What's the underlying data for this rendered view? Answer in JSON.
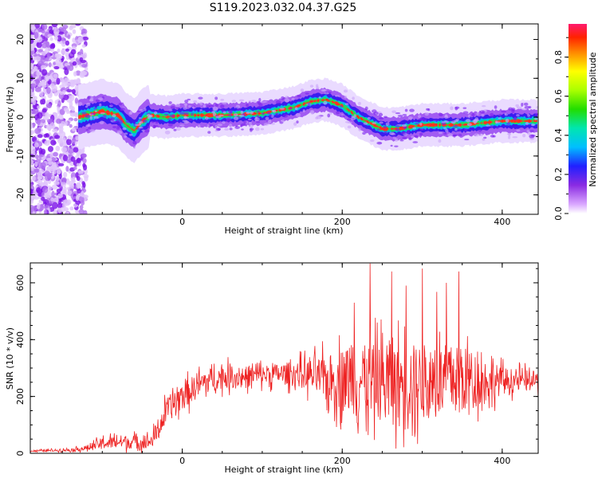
{
  "title": "S119.2023.032.04.37.G25",
  "chart_data": [
    {
      "type": "heatmap",
      "xlabel": "Height of straight line (km)",
      "ylabel": "Frequency (Hz)",
      "xlim": [
        -190,
        445
      ],
      "ylim": [
        -25,
        24
      ],
      "xticks": [
        0,
        200,
        400
      ],
      "yticks": [
        -20,
        -10,
        0,
        10,
        20
      ],
      "colorbar": {
        "label": "Normalized spectral amplitude",
        "range": [
          0,
          0.97
        ],
        "ticks": [
          0.0,
          0.2,
          0.4,
          0.6,
          0.8
        ]
      },
      "ridge": {
        "x": [
          -130,
          -100,
          -80,
          -70,
          -60,
          -50,
          -40,
          -20,
          0,
          50,
          100,
          140,
          160,
          180,
          200,
          220,
          250,
          270,
          300,
          350,
          400,
          445
        ],
        "y": [
          0,
          1.5,
          0.5,
          -2,
          -3.5,
          -1,
          0.5,
          0,
          0.5,
          0.5,
          1,
          2.5,
          4,
          4.5,
          3,
          0,
          -3,
          -3,
          -2,
          -2,
          -1,
          -1
        ]
      }
    },
    {
      "type": "line",
      "xlabel": "Height of straight line (km)",
      "ylabel": "SNR (10 * v/v)",
      "xlim": [
        -190,
        445
      ],
      "ylim": [
        0,
        670
      ],
      "xticks": [
        0,
        200,
        400
      ],
      "yticks": [
        0,
        200,
        400,
        600
      ],
      "color": "#ee2222",
      "envelope": {
        "x": [
          -190,
          -140,
          -120,
          -100,
          -80,
          -60,
          -40,
          -30,
          -20,
          0,
          20,
          40,
          60,
          80,
          100,
          120,
          150,
          180,
          200,
          250,
          300,
          350,
          400,
          445
        ],
        "base": [
          8,
          12,
          18,
          35,
          40,
          40,
          40,
          80,
          150,
          200,
          240,
          265,
          270,
          270,
          275,
          280,
          280,
          260,
          260,
          250,
          250,
          260,
          255,
          255
        ],
        "amp": [
          4,
          6,
          12,
          25,
          30,
          30,
          30,
          45,
          55,
          60,
          55,
          50,
          50,
          45,
          45,
          45,
          60,
          100,
          140,
          170,
          170,
          150,
          60,
          40
        ]
      },
      "spikes": [
        {
          "x": 235,
          "y": 668
        },
        {
          "x": 262,
          "y": 640
        },
        {
          "x": 300,
          "y": 650
        },
        {
          "x": 318,
          "y": 568
        },
        {
          "x": 346,
          "y": 640
        },
        {
          "x": 215,
          "y": 530
        },
        {
          "x": 280,
          "y": 590
        },
        {
          "x": 330,
          "y": 600
        }
      ]
    }
  ]
}
